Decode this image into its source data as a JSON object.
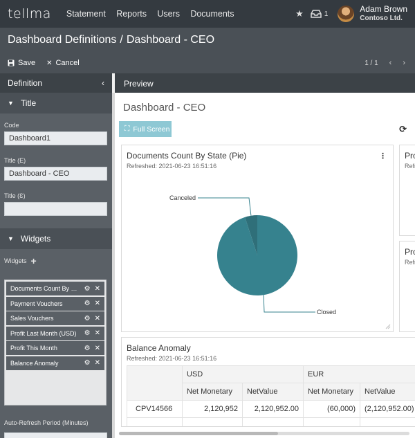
{
  "app": {
    "logo": "tellma"
  },
  "nav": [
    "Statement",
    "Reports",
    "Users",
    "Documents"
  ],
  "header": {
    "inbox_count": "1",
    "user_name": "Adam Brown",
    "user_org": "Contoso Ltd."
  },
  "breadcrumb": {
    "parent": "Dashboard Definitions",
    "separator": "/",
    "current": "Dashboard - CEO"
  },
  "toolbar": {
    "save_label": "Save",
    "cancel_label": "Cancel",
    "pager": "1 / 1"
  },
  "definition": {
    "header": "Definition",
    "title_section": "Title",
    "code_label": "Code",
    "code_value": "Dashboard1",
    "title_e_label": "Title (E)",
    "title_e_value": "Dashboard - CEO",
    "title_z_label": "Title (Ɛ)",
    "title_z_value": "",
    "widgets_section": "Widgets",
    "widgets_label": "Widgets",
    "widgets": [
      "Documents Count By State (Pie)",
      "Payment Vouchers",
      "Sales Vouchers",
      "Profit Last Month (USD)",
      "Profit This Month",
      "Balance Anomaly"
    ],
    "auto_refresh_label": "Auto-Refresh Period (Minutes)"
  },
  "preview": {
    "header": "Preview",
    "title": "Dashboard - CEO",
    "full_screen_label": "Full Screen",
    "pie_card": {
      "title": "Documents Count By State (Pie)",
      "refreshed": "Refreshed: 2021-06-23 16:51:16"
    },
    "side_card_1": {
      "title": "Pro",
      "sub": "Refr"
    },
    "side_card_2": {
      "title": "Pro",
      "sub": "Refr"
    },
    "balance_card": {
      "title": "Balance Anomaly",
      "refreshed": "Refreshed: 2021-06-23 16:51:16",
      "currencies": [
        "USD",
        "EUR"
      ],
      "columns": [
        "Net Monetary",
        "NetValue",
        "Net Monetary",
        "NetValue"
      ],
      "rows": [
        {
          "label": "CPV14566",
          "values": [
            "2,120,952",
            "2,120,952.00",
            "(60,000)",
            "(2,120,952.00)"
          ]
        }
      ]
    }
  },
  "chart_data": {
    "type": "pie",
    "categories": [
      "Closed",
      "Canceled"
    ],
    "values": [
      95,
      5
    ],
    "colors": [
      "#36828e",
      "#2f6f79"
    ]
  }
}
